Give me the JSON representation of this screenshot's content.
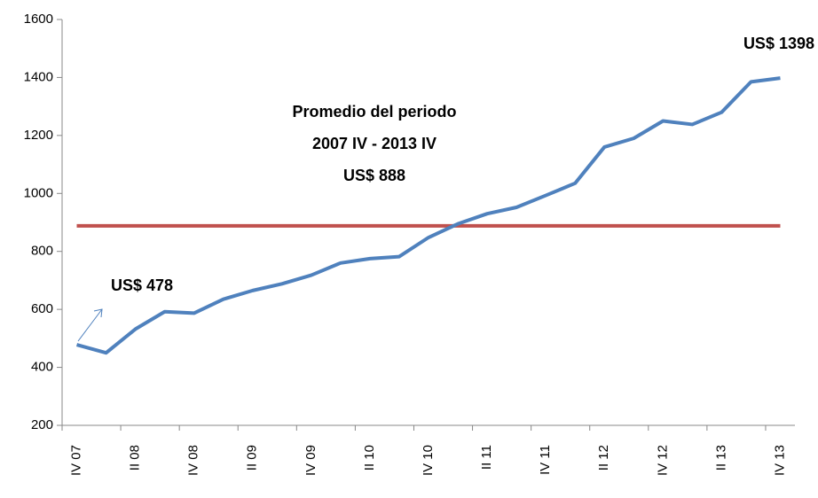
{
  "chart_data": {
    "type": "line",
    "categories": [
      "IV 07",
      null,
      "II 08",
      null,
      "IV 08",
      null,
      "II 09",
      null,
      "IV 09",
      null,
      "II 10",
      null,
      "IV 10",
      null,
      "II 11",
      null,
      "IV 11",
      null,
      "II 12",
      null,
      "IV 12",
      null,
      "II 13",
      null,
      "IV 13"
    ],
    "values": [
      478,
      450,
      532,
      592,
      587,
      635,
      665,
      688,
      718,
      760,
      775,
      782,
      848,
      895,
      930,
      952,
      993,
      1035,
      1160,
      1190,
      1250,
      1238,
      1280,
      1385,
      1398
    ],
    "color": "#4f81bd",
    "average": 888,
    "average_color": "#c0504d",
    "ylim": [
      200,
      1600
    ],
    "yticks": [
      200,
      400,
      600,
      800,
      1000,
      1200,
      1400,
      1600
    ],
    "annotations": [
      "Promedio del periodo",
      "2007 IV - 2013 IV",
      "US$ 888",
      "US$ 478",
      "US$ 1398"
    ]
  }
}
